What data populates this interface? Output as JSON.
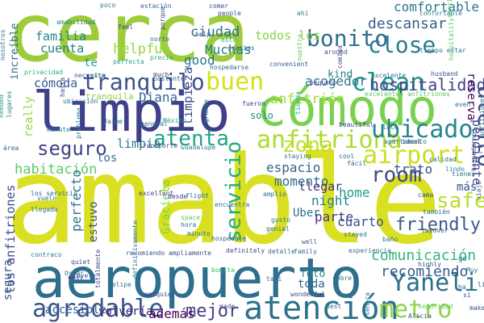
{
  "words": [
    {
      "text": "amable",
      "color": "#d9e021"
    },
    {
      "text": "cerca",
      "color": "#9ccc3a"
    },
    {
      "text": "aeropuerto",
      "color": "#2e6f8e"
    },
    {
      "text": "limpio",
      "color": "#40408a"
    },
    {
      "text": "cómodo",
      "color": "#7ad151"
    },
    {
      "text": "atención",
      "color": "#2c728e"
    },
    {
      "text": "airport",
      "color": "#c8e020"
    },
    {
      "text": "anfitriona",
      "color": "#addc30"
    },
    {
      "text": "ubicado",
      "color": "#24868e"
    },
    {
      "text": "tranquilo",
      "color": "#3b528b"
    },
    {
      "text": "agradable",
      "color": "#3a548c"
    },
    {
      "text": "buen",
      "color": "#d2e21b"
    },
    {
      "text": "bonito",
      "color": "#2d708e"
    },
    {
      "text": "clean",
      "color": "#1f958b"
    },
    {
      "text": "close",
      "color": "#287d8e"
    },
    {
      "text": "atento",
      "color": "#3e4c8a"
    },
    {
      "text": "Yaneli",
      "color": "#2e6e8e"
    },
    {
      "text": "metro",
      "color": "#8ed645"
    },
    {
      "text": "atenta",
      "color": "#20a386"
    },
    {
      "text": "servicio",
      "color": "#25ab82"
    },
    {
      "text": "zona",
      "color": "#c2df23"
    },
    {
      "text": "seguro",
      "color": "#404387"
    },
    {
      "text": "room",
      "color": "#3e4989"
    },
    {
      "text": "hospitalidad",
      "color": "#3f4788"
    },
    {
      "text": "mejor",
      "color": "#433e85"
    },
    {
      "text": "comunicación",
      "color": "#32b67a"
    },
    {
      "text": "friendly",
      "color": "#38598c"
    },
    {
      "text": "recomiendo",
      "color": "#35608d"
    },
    {
      "text": "habitación",
      "color": "#5ec962"
    },
    {
      "text": "descansar",
      "color": "#365c8d"
    },
    {
      "text": "comfortable",
      "color": "#2a788e"
    },
    {
      "text": "acogedor",
      "color": "#2b758e"
    },
    {
      "text": "anfitrión",
      "color": "#a2da37"
    },
    {
      "text": "perfecto",
      "color": "#2a768e"
    },
    {
      "text": "ciudad",
      "color": "#2c718e"
    },
    {
      "text": "familia",
      "color": "#23888e"
    },
    {
      "text": "cuenta",
      "color": "#277f8e"
    },
    {
      "text": "helpful",
      "color": "#95d840"
    },
    {
      "text": "Muchas",
      "color": "#27808e"
    },
    {
      "text": "limpieza",
      "color": "#3f4889"
    },
    {
      "text": "good",
      "color": "#2a778e"
    },
    {
      "text": "espacio",
      "color": "#30678d"
    },
    {
      "text": "momento",
      "color": "#2f6b8e"
    },
    {
      "text": "estuvo",
      "color": "#3b528b"
    },
    {
      "text": "parte",
      "color": "#453781"
    },
    {
      "text": "trato",
      "color": "#3b528b"
    },
    {
      "text": "Graciela",
      "color": "#7fd34e"
    },
    {
      "text": "además",
      "color": "#440154"
    },
    {
      "text": "los anfitriones",
      "color": "#3e4c8a"
    },
    {
      "text": "cómoda",
      "color": "#375a8c"
    },
    {
      "text": "Diana",
      "color": "#31688e"
    },
    {
      "text": "todos los",
      "color": "#89d548"
    },
    {
      "text": "safe",
      "color": "#b8de29"
    },
    {
      "text": "home",
      "color": "#1f9e89"
    },
    {
      "text": "night",
      "color": "#26828e"
    },
    {
      "text": "llegar",
      "color": "#472c7a"
    },
    {
      "text": "cuarto",
      "color": "#3c508b"
    },
    {
      "text": "Uber",
      "color": "#2c738e"
    },
    {
      "text": "limpia",
      "color": "#2a788e"
    },
    {
      "text": "increíble",
      "color": "#2e6d8e"
    },
    {
      "text": "pendiente",
      "color": "#3f4889"
    },
    {
      "text": "kind",
      "color": "#26828e"
    },
    {
      "text": "solo",
      "color": "#23898e"
    },
    {
      "text": "reserva",
      "color": "#440154"
    },
    {
      "text": "segura",
      "color": "#3a548c"
    },
    {
      "text": "volvería",
      "color": "#482173"
    },
    {
      "text": "accesible",
      "color": "#365d8d"
    },
    {
      "text": "really",
      "color": "#93d741"
    },
    {
      "text": "tranquila",
      "color": "#86d549"
    },
    {
      "text": "te",
      "color": "#1f9e89"
    },
    {
      "text": "los",
      "color": "#29798e"
    },
    {
      "text": "más",
      "color": "#3b518b"
    },
    {
      "text": "toda",
      "color": "#31668e"
    },
    {
      "text": "foto",
      "color": "#26828e"
    },
    {
      "text": "Jaime",
      "color": "#2d708e"
    },
    {
      "text": "poco",
      "color": "#2a768e"
    },
    {
      "text": "estación",
      "color": "#306a8e"
    },
    {
      "text": "porque",
      "color": "#404588"
    },
    {
      "text": "comer",
      "color": "#3e4c8a"
    },
    {
      "text": "people",
      "color": "#3a548c"
    },
    {
      "text": "ahí",
      "color": "#277e8e"
    },
    {
      "text": "confortable",
      "color": "#2a788e"
    },
    {
      "text": "sencillo",
      "color": "#4ac16d"
    },
    {
      "text": "perfecta",
      "color": "#20a486"
    },
    {
      "text": "precio",
      "color": "#27ad81"
    },
    {
      "text": "feel",
      "color": "#3c4f8a"
    },
    {
      "text": "help",
      "color": "#3b528b"
    },
    {
      "text": "este",
      "color": "#29af7f"
    },
    {
      "text": "nuestra",
      "color": "#5cc863"
    },
    {
      "text": "around",
      "color": "#3a548c"
    },
    {
      "text": "tiempo estar",
      "color": "#2d718e"
    },
    {
      "text": "hospedarse",
      "color": "#2f6c8e"
    },
    {
      "text": "convenient",
      "color": "#365d8d"
    },
    {
      "text": "amabilidad",
      "color": "#277f8e"
    },
    {
      "text": "privacidad",
      "color": "#2ab07f"
    },
    {
      "text": "much",
      "color": "#46337f"
    },
    {
      "text": "lugares",
      "color": "#26828e"
    },
    {
      "text": "needed",
      "color": "#1f9e89"
    },
    {
      "text": "ubicación",
      "color": "#2d718e"
    },
    {
      "text": "pequeño",
      "color": "#3e4a89"
    },
    {
      "text": "fueron",
      "color": "#404588"
    },
    {
      "text": "tienda",
      "color": "#25ac82"
    },
    {
      "text": "even",
      "color": "#31688e"
    },
    {
      "text": "beautiful",
      "color": "#3f4788"
    },
    {
      "text": "late",
      "color": "#2e6e8e"
    },
    {
      "text": "ideal",
      "color": "#3a538b"
    },
    {
      "text": "staying",
      "color": "#2c728e"
    },
    {
      "text": "cool",
      "color": "#2b748e"
    },
    {
      "text": "tienes",
      "color": "#2e6f8e"
    },
    {
      "text": "lindo",
      "color": "#24878e"
    },
    {
      "text": "viaje",
      "color": "#365c8d"
    },
    {
      "text": "cama",
      "color": "#3b518b"
    },
    {
      "text": "flight",
      "color": "#2e6e8e"
    },
    {
      "text": "desde",
      "color": "#453882"
    },
    {
      "text": "excellent",
      "color": "#3e4a89"
    },
    {
      "text": "amplio",
      "color": "#2c738e"
    },
    {
      "text": "gusto",
      "color": "#25848e"
    },
    {
      "text": "genial",
      "color": "#31688e"
    },
    {
      "text": "layover",
      "color": "#3a548c"
    },
    {
      "text": "stayed",
      "color": "#2c718e"
    },
    {
      "text": "baño",
      "color": "#2a788e"
    },
    {
      "text": "highly",
      "color": "#3b528b"
    },
    {
      "text": "experiencia",
      "color": "#2f6c8e"
    },
    {
      "text": "detalle",
      "color": "#31678e"
    },
    {
      "text": "family",
      "color": "#2c728e"
    },
    {
      "text": "definitely",
      "color": "#3f4889"
    },
    {
      "text": "recomiendo ampliamente",
      "color": "#3c4f8a"
    },
    {
      "text": "bonita",
      "color": "#37b878"
    },
    {
      "text": "sobre",
      "color": "#2a778e"
    },
    {
      "text": "taxi",
      "color": "#2b758e"
    },
    {
      "text": "wonderful",
      "color": "#404688"
    },
    {
      "text": "best",
      "color": "#2e6d8e"
    },
    {
      "text": "seguridad",
      "color": "#5ec962"
    },
    {
      "text": "Alicia",
      "color": "#3c508b"
    },
    {
      "text": "cualquier",
      "color": "#3f4889"
    },
    {
      "text": "made",
      "color": "#3e4c8a"
    },
    {
      "text": "Felipe",
      "color": "#2c738e"
    },
    {
      "text": "lovely",
      "color": "#3a548c"
    },
    {
      "text": "quiet",
      "color": "#3b518b"
    },
    {
      "text": "easy",
      "color": "#404387"
    },
    {
      "text": "Oscar",
      "color": "#2e6e8e"
    },
    {
      "text": "minute",
      "color": "#23898e"
    },
    {
      "text": "llegada",
      "color": "#2e6e8e"
    },
    {
      "text": "vuelo",
      "color": "#2a788e"
    },
    {
      "text": "los servicio",
      "color": "#306a8e"
    },
    {
      "text": "área",
      "color": "#31688e"
    },
    {
      "text": "hora",
      "color": "#2c718e"
    },
    {
      "text": "space",
      "color": "#5cc863"
    },
    {
      "text": "transporte",
      "color": "#3b528b"
    },
    {
      "text": "Guadalupe",
      "color": "#2a778e"
    },
    {
      "text": "hospedaje",
      "color": "#31688e"
    },
    {
      "text": "minuto",
      "color": "#2e6e8e"
    },
    {
      "text": "México",
      "color": "#25ab82"
    },
    {
      "text": "general",
      "color": "#2a788e"
    },
    {
      "text": "apartamento",
      "color": "#2c718e"
    },
    {
      "text": "nosotros",
      "color": "#2a788e"
    },
    {
      "text": "hasta",
      "color": "#3f4889"
    },
    {
      "text": "también",
      "color": "#2e6e8e"
    },
    {
      "text": "excelentes anfitriones",
      "color": "#5cc863"
    },
    {
      "text": "husband",
      "color": "#3a548c"
    },
    {
      "text": "hospitality",
      "color": "#5ec962"
    },
    {
      "text": "encuentra",
      "color": "#2c718e"
    },
    {
      "text": "well",
      "color": "#3b528b"
    },
    {
      "text": "fácil",
      "color": "#31688e"
    },
    {
      "text": "Muy",
      "color": "#2a778e"
    },
    {
      "text": "totalmente",
      "color": "#404588"
    },
    {
      "text": "definitivamente",
      "color": "#2a788e"
    },
    {
      "text": "señora",
      "color": "#2c718e"
    },
    {
      "text": "anfitriones",
      "color": "#2e6e8e"
    },
    {
      "text": "limpios",
      "color": "#3b528b"
    },
    {
      "text": "calidad",
      "color": "#2c718e"
    },
    {
      "text": "contraco",
      "color": "#2a788e"
    },
    {
      "text": "bastante",
      "color": "#31688e"
    },
    {
      "text": "necesita",
      "color": "#3a548c"
    },
    {
      "text": "norte",
      "color": "#2e6e8e"
    },
    {
      "text": "grande",
      "color": "#2c718e"
    },
    {
      "text": "comida",
      "color": "#404387"
    },
    {
      "text": "problema",
      "color": "#2a788e"
    },
    {
      "text": "hospedarnos",
      "color": "#3b528b"
    },
    {
      "text": "excelente",
      "color": "#2e6e8e"
    },
    {
      "text": "gracias",
      "color": "#31688e"
    },
    {
      "text": "nice",
      "color": "#2c718e"
    },
    {
      "text": "make",
      "color": "#3a548c"
    },
    {
      "text": "go",
      "color": "#2a788e"
    },
    {
      "text": "ha",
      "color": "#2e6e8e"
    },
    {
      "text": "sí",
      "color": "#3b528b"
    }
  ]
}
